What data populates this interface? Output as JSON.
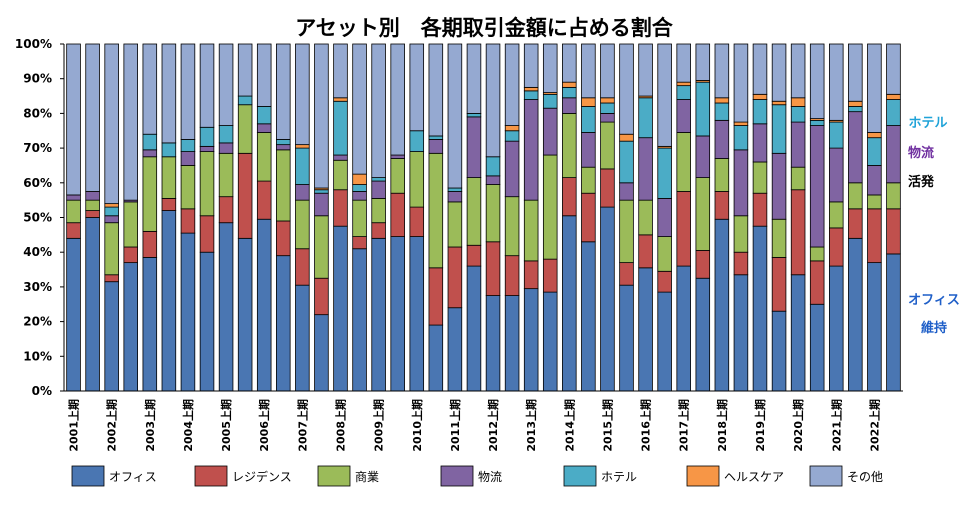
{
  "chart_data": {
    "type": "bar",
    "stacked": true,
    "title": "アセット別　各期取引金額に占める割合",
    "xlabel": "",
    "ylabel": "",
    "ylim": [
      0,
      100
    ],
    "yticks": [
      "0%",
      "10%",
      "20%",
      "30%",
      "40%",
      "50%",
      "60%",
      "70%",
      "80%",
      "90%",
      "100%"
    ],
    "grid": false,
    "legend": "bottom",
    "categories": [
      "2001上期",
      "2001下期",
      "2002上期",
      "2002下期",
      "2003上期",
      "2003下期",
      "2004上期",
      "2004下期",
      "2005上期",
      "2005下期",
      "2006上期",
      "2006下期",
      "2007上期",
      "2007下期",
      "2008上期",
      "2008下期",
      "2009上期",
      "2009下期",
      "2010上期",
      "2010下期",
      "2011上期",
      "2011下期",
      "2012上期",
      "2012下期",
      "2013上期",
      "2013下期",
      "2014上期",
      "2014下期",
      "2015上期",
      "2015下期",
      "2016上期",
      "2016下期",
      "2017上期",
      "2017下期",
      "2018上期",
      "2018下期",
      "2019上期",
      "2019下期",
      "2020上期",
      "2020下期",
      "2021上期",
      "2021下期",
      "2022上期",
      "2022下期"
    ],
    "xtick_labels": [
      {
        "index": 0,
        "label": "2001上期"
      },
      {
        "index": 2,
        "label": "2002上期"
      },
      {
        "index": 4,
        "label": "2003上期"
      },
      {
        "index": 6,
        "label": "2004上期"
      },
      {
        "index": 8,
        "label": "2005上期"
      },
      {
        "index": 10,
        "label": "2006上期"
      },
      {
        "index": 12,
        "label": "2007上期"
      },
      {
        "index": 14,
        "label": "2008上期"
      },
      {
        "index": 16,
        "label": "2009上期"
      },
      {
        "index": 18,
        "label": "2010上期"
      },
      {
        "index": 20,
        "label": "2011上期"
      },
      {
        "index": 22,
        "label": "2012上期"
      },
      {
        "index": 24,
        "label": "2013上期"
      },
      {
        "index": 26,
        "label": "2014上期"
      },
      {
        "index": 28,
        "label": "2015上期"
      },
      {
        "index": 30,
        "label": "2016上期"
      },
      {
        "index": 32,
        "label": "2017上期"
      },
      {
        "index": 34,
        "label": "2018上期"
      },
      {
        "index": 36,
        "label": "2019上期"
      },
      {
        "index": 38,
        "label": "2020上期"
      },
      {
        "index": 40,
        "label": "2021上期"
      },
      {
        "index": 42,
        "label": "2022上期"
      }
    ],
    "series": [
      {
        "name": "オフィス",
        "color": "#4a76b2",
        "values": [
          44,
          50,
          31.5,
          37,
          38.5,
          52,
          45.5,
          40,
          48.5,
          44,
          49.5,
          39,
          30.5,
          22,
          47.5,
          41,
          44,
          44.5,
          44.5,
          19,
          24,
          36,
          27.5,
          27.5,
          29.5,
          28.5,
          50.5,
          43,
          53,
          30.5,
          35.5,
          28.5,
          36,
          32.5,
          49.5,
          33.5,
          47.5,
          23,
          33.5,
          25,
          36,
          44,
          37,
          39.5
        ]
      },
      {
        "name": "レジデンス",
        "color": "#c0504d",
        "values": [
          4.5,
          2,
          2,
          4.5,
          7.5,
          3.5,
          7,
          10.5,
          7.5,
          24.5,
          11,
          10,
          10.5,
          10.5,
          10.5,
          3.5,
          4.5,
          12.5,
          8.5,
          16.5,
          17.5,
          6,
          15.5,
          11.5,
          8,
          9.5,
          11,
          14,
          11,
          6.5,
          9.5,
          6,
          21.5,
          8,
          8,
          6.5,
          9.5,
          15.5,
          24.5,
          12.5,
          11,
          8.5,
          15.5,
          13
        ]
      },
      {
        "name": "商業",
        "color": "#9bbb59",
        "values": [
          6.5,
          3,
          15,
          13,
          21.5,
          12,
          12.5,
          18.5,
          12.5,
          14,
          14,
          20.5,
          14,
          18,
          8.5,
          10.5,
          7,
          10,
          16,
          33,
          13,
          19.5,
          16.5,
          17,
          17.5,
          30,
          18.5,
          7.5,
          13.5,
          18,
          10,
          10,
          17,
          21,
          9.5,
          10.5,
          9,
          11,
          6.5,
          4,
          7.5,
          7.5,
          4,
          7.5
        ]
      },
      {
        "name": "物流",
        "color": "#8064a2",
        "values": [
          1.5,
          2.5,
          2,
          0.5,
          2,
          0,
          4,
          1.5,
          3,
          0,
          2.5,
          1.5,
          4.5,
          6.5,
          1.5,
          2.5,
          5,
          1,
          0,
          4,
          3,
          17.5,
          2.5,
          16,
          29,
          13.5,
          4.5,
          10,
          2.5,
          5,
          18,
          11,
          9.5,
          12,
          11,
          19,
          11,
          19,
          13,
          35,
          15.5,
          20.5,
          8.5,
          16.5
        ]
      },
      {
        "name": "ホテル",
        "color": "#4bacc6",
        "values": [
          0,
          0,
          2.5,
          0,
          4.5,
          4,
          3.5,
          5.5,
          5,
          2.5,
          5,
          1.5,
          10.5,
          1,
          15.5,
          2,
          1,
          0,
          6,
          1,
          1,
          1,
          5.5,
          3,
          2.5,
          4,
          3,
          7.5,
          3,
          12,
          11.5,
          14.5,
          4,
          15.5,
          5,
          7,
          7,
          14,
          4.5,
          1.5,
          7.5,
          1.5,
          8,
          7.5
        ]
      },
      {
        "name": "ヘルスケア",
        "color": "#f79646",
        "values": [
          0,
          0,
          1,
          0,
          0,
          0,
          0,
          0,
          0,
          0,
          0,
          0,
          1,
          0.5,
          1,
          3,
          0,
          0,
          0,
          0,
          0,
          0,
          0,
          1.5,
          1,
          0.5,
          1.5,
          2.5,
          1.5,
          2,
          0.5,
          0.5,
          1,
          0.5,
          1.5,
          1,
          1.5,
          1,
          2.5,
          0.5,
          0.5,
          1.5,
          1.5,
          1.5
        ]
      },
      {
        "name": "その他",
        "color": "#95a9d1",
        "values": [
          43.5,
          42.5,
          46,
          45,
          26,
          28.5,
          27.5,
          24,
          23.5,
          15,
          18,
          27.5,
          29,
          41.5,
          15.5,
          37.5,
          38.5,
          32,
          25,
          26.5,
          41.5,
          20,
          32.5,
          23.5,
          12.5,
          14,
          11,
          15.5,
          15.5,
          26,
          15,
          29.5,
          11,
          10.5,
          15.5,
          22.5,
          14.5,
          16.5,
          15.5,
          21.5,
          22,
          16.5,
          25.5,
          14.5
        ]
      }
    ],
    "annotations": [
      {
        "text": "ホテル",
        "color": "#1fa3d8"
      },
      {
        "text": "物流",
        "color": "#7030a0"
      },
      {
        "text": "活発",
        "color": "#000000"
      },
      {
        "text": "オフィス",
        "color": "#1f5fc8"
      },
      {
        "text": "維持",
        "color": "#1f5fc8"
      }
    ]
  }
}
